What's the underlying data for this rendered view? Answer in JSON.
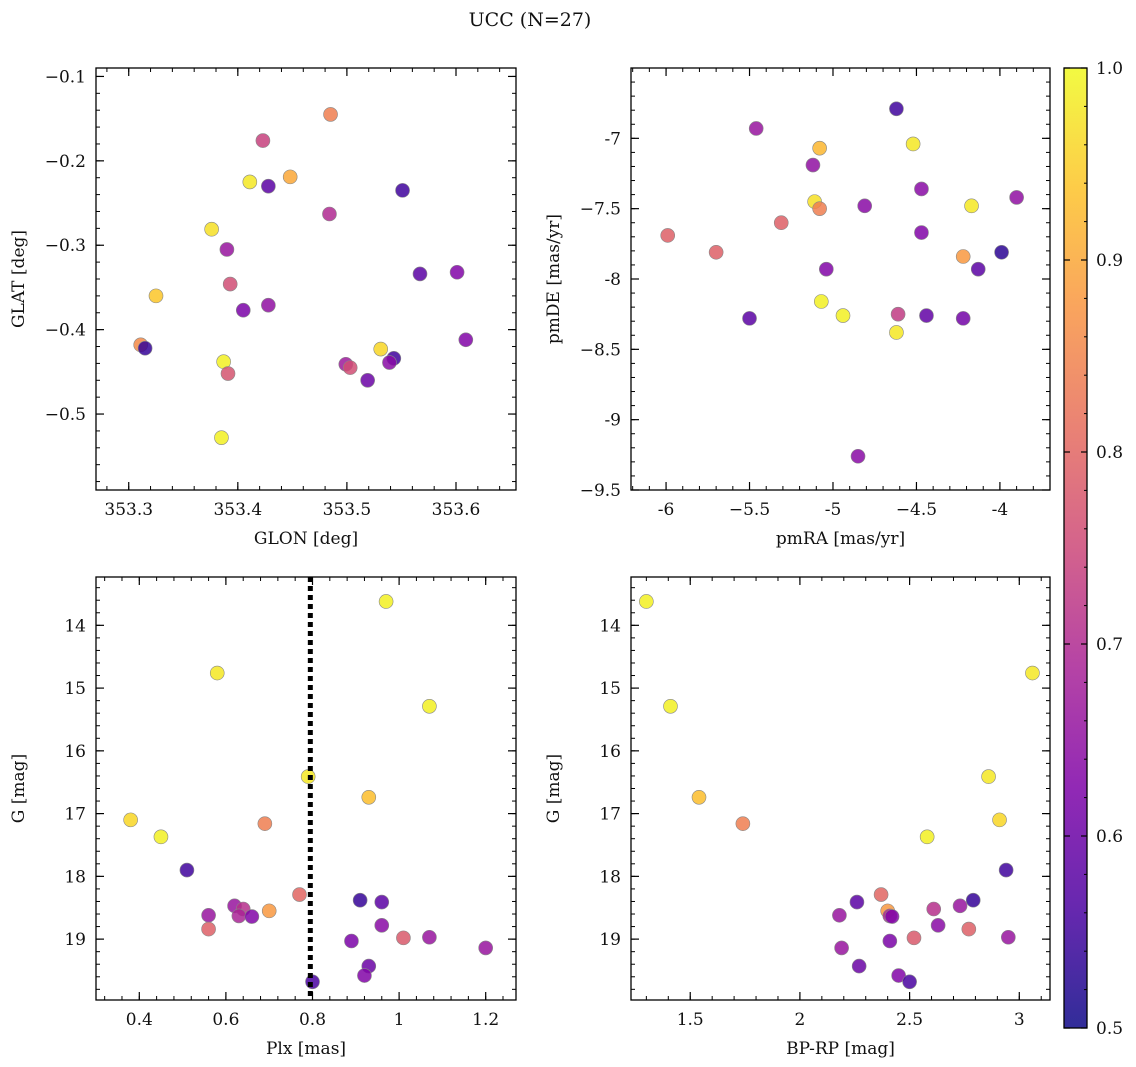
{
  "figure": {
    "title": "UCC (N=27)",
    "colorbar": {
      "min": 0.5,
      "max": 1.0,
      "ticks": [
        0.5,
        0.6,
        0.7,
        0.8,
        0.9,
        1.0
      ],
      "colormap": "plasma"
    },
    "marker": {
      "edge_color": "#888888"
    }
  },
  "chart_data": [
    {
      "type": "scatter",
      "id": "glon-glat",
      "xlabel": "GLON [deg]",
      "ylabel": "GLAT [deg]",
      "xlim": [
        353.27,
        353.655
      ],
      "ylim": [
        -0.59,
        -0.09
      ],
      "xticks": [
        353.3,
        353.4,
        353.5,
        353.6
      ],
      "yticks": [
        -0.5,
        -0.4,
        -0.3,
        -0.2,
        -0.1
      ],
      "points": [
        {
          "x": 353.485,
          "y": -0.145,
          "c": 0.84
        },
        {
          "x": 353.423,
          "y": -0.176,
          "c": 0.74
        },
        {
          "x": 353.448,
          "y": -0.219,
          "c": 0.9
        },
        {
          "x": 353.411,
          "y": -0.225,
          "c": 0.98
        },
        {
          "x": 353.428,
          "y": -0.23,
          "c": 0.58
        },
        {
          "x": 353.551,
          "y": -0.235,
          "c": 0.55
        },
        {
          "x": 353.484,
          "y": -0.263,
          "c": 0.7
        },
        {
          "x": 353.376,
          "y": -0.281,
          "c": 0.97
        },
        {
          "x": 353.39,
          "y": -0.305,
          "c": 0.66
        },
        {
          "x": 353.567,
          "y": -0.334,
          "c": 0.58
        },
        {
          "x": 353.601,
          "y": -0.332,
          "c": 0.63
        },
        {
          "x": 353.393,
          "y": -0.346,
          "c": 0.76
        },
        {
          "x": 353.325,
          "y": -0.36,
          "c": 0.94
        },
        {
          "x": 353.428,
          "y": -0.371,
          "c": 0.65
        },
        {
          "x": 353.405,
          "y": -0.377,
          "c": 0.62
        },
        {
          "x": 353.609,
          "y": -0.412,
          "c": 0.63
        },
        {
          "x": 353.311,
          "y": -0.418,
          "c": 0.86
        },
        {
          "x": 353.315,
          "y": -0.422,
          "c": 0.54
        },
        {
          "x": 353.531,
          "y": -0.423,
          "c": 0.96
        },
        {
          "x": 353.543,
          "y": -0.434,
          "c": 0.55
        },
        {
          "x": 353.387,
          "y": -0.438,
          "c": 0.99
        },
        {
          "x": 353.539,
          "y": -0.439,
          "c": 0.64
        },
        {
          "x": 353.499,
          "y": -0.441,
          "c": 0.67
        },
        {
          "x": 353.503,
          "y": -0.445,
          "c": 0.76
        },
        {
          "x": 353.391,
          "y": -0.452,
          "c": 0.77
        },
        {
          "x": 353.519,
          "y": -0.46,
          "c": 0.6
        },
        {
          "x": 353.385,
          "y": -0.528,
          "c": 0.99
        }
      ]
    },
    {
      "type": "scatter",
      "id": "pmra-pmde",
      "xlabel": "pmRA [mas/yr]",
      "ylabel": "pmDE [mas/yr]",
      "xlim": [
        -6.21,
        -3.7
      ],
      "ylim": [
        -9.5,
        -6.5
      ],
      "xticks": [
        -6.0,
        -5.5,
        -5.0,
        -4.5,
        -4.0
      ],
      "yticks": [
        -9.5,
        -9.0,
        -8.5,
        -8.0,
        -7.5,
        -7.0
      ],
      "points": [
        {
          "x": -4.62,
          "y": -6.79,
          "c": 0.55
        },
        {
          "x": -5.46,
          "y": -6.93,
          "c": 0.66
        },
        {
          "x": -4.52,
          "y": -7.04,
          "c": 0.98
        },
        {
          "x": -5.08,
          "y": -7.07,
          "c": 0.92
        },
        {
          "x": -5.12,
          "y": -7.19,
          "c": 0.65
        },
        {
          "x": -4.47,
          "y": -7.36,
          "c": 0.64
        },
        {
          "x": -3.9,
          "y": -7.42,
          "c": 0.65
        },
        {
          "x": -5.11,
          "y": -7.45,
          "c": 0.97
        },
        {
          "x": -4.81,
          "y": -7.48,
          "c": 0.64
        },
        {
          "x": -4.17,
          "y": -7.48,
          "c": 0.98
        },
        {
          "x": -5.08,
          "y": -7.5,
          "c": 0.84
        },
        {
          "x": -5.31,
          "y": -7.6,
          "c": 0.79
        },
        {
          "x": -4.47,
          "y": -7.67,
          "c": 0.63
        },
        {
          "x": -5.99,
          "y": -7.69,
          "c": 0.79
        },
        {
          "x": -5.7,
          "y": -7.81,
          "c": 0.79
        },
        {
          "x": -3.99,
          "y": -7.81,
          "c": 0.53
        },
        {
          "x": -4.22,
          "y": -7.84,
          "c": 0.88
        },
        {
          "x": -4.13,
          "y": -7.93,
          "c": 0.58
        },
        {
          "x": -5.04,
          "y": -7.93,
          "c": 0.63
        },
        {
          "x": -5.07,
          "y": -8.16,
          "c": 0.99
        },
        {
          "x": -4.61,
          "y": -8.25,
          "c": 0.73
        },
        {
          "x": -4.44,
          "y": -8.26,
          "c": 0.59
        },
        {
          "x": -4.94,
          "y": -8.26,
          "c": 0.99
        },
        {
          "x": -5.5,
          "y": -8.28,
          "c": 0.58
        },
        {
          "x": -4.22,
          "y": -8.28,
          "c": 0.61
        },
        {
          "x": -4.62,
          "y": -8.38,
          "c": 0.98
        },
        {
          "x": -4.85,
          "y": -9.26,
          "c": 0.64
        }
      ]
    },
    {
      "type": "scatter",
      "id": "plx-g",
      "xlabel": "Plx [mas]",
      "ylabel": "G [mag]",
      "xlim": [
        0.3,
        1.27
      ],
      "ylim": [
        19.97,
        13.23
      ],
      "xticks": [
        0.4,
        0.6,
        0.8,
        1.0,
        1.2
      ],
      "yticks": [
        14,
        15,
        16,
        17,
        18,
        19
      ],
      "vline": {
        "x": 0.795,
        "style": "dotted"
      },
      "points": [
        {
          "x": 0.97,
          "y": 13.62,
          "c": 0.99
        },
        {
          "x": 0.58,
          "y": 14.76,
          "c": 0.98
        },
        {
          "x": 1.07,
          "y": 15.29,
          "c": 0.99
        },
        {
          "x": 0.79,
          "y": 16.41,
          "c": 0.98
        },
        {
          "x": 0.93,
          "y": 16.74,
          "c": 0.93
        },
        {
          "x": 0.38,
          "y": 17.1,
          "c": 0.96
        },
        {
          "x": 0.69,
          "y": 17.16,
          "c": 0.84
        },
        {
          "x": 0.45,
          "y": 17.37,
          "c": 0.99
        },
        {
          "x": 0.51,
          "y": 17.9,
          "c": 0.55
        },
        {
          "x": 0.77,
          "y": 18.29,
          "c": 0.8
        },
        {
          "x": 0.91,
          "y": 18.38,
          "c": 0.54
        },
        {
          "x": 0.96,
          "y": 18.41,
          "c": 0.58
        },
        {
          "x": 0.62,
          "y": 18.47,
          "c": 0.66
        },
        {
          "x": 0.64,
          "y": 18.52,
          "c": 0.71
        },
        {
          "x": 0.7,
          "y": 18.55,
          "c": 0.88
        },
        {
          "x": 0.56,
          "y": 18.62,
          "c": 0.66
        },
        {
          "x": 0.63,
          "y": 18.63,
          "c": 0.69
        },
        {
          "x": 0.66,
          "y": 18.64,
          "c": 0.63
        },
        {
          "x": 0.96,
          "y": 18.78,
          "c": 0.64
        },
        {
          "x": 0.56,
          "y": 18.84,
          "c": 0.79
        },
        {
          "x": 1.07,
          "y": 18.97,
          "c": 0.66
        },
        {
          "x": 1.01,
          "y": 18.98,
          "c": 0.78
        },
        {
          "x": 0.89,
          "y": 19.03,
          "c": 0.62
        },
        {
          "x": 1.2,
          "y": 19.14,
          "c": 0.66
        },
        {
          "x": 0.93,
          "y": 19.43,
          "c": 0.6
        },
        {
          "x": 0.92,
          "y": 19.58,
          "c": 0.63
        },
        {
          "x": 0.8,
          "y": 19.68,
          "c": 0.56
        }
      ]
    },
    {
      "type": "scatter",
      "id": "bprp-g",
      "xlabel": "BP-RP [mag]",
      "ylabel": "G [mag]",
      "xlim": [
        1.23,
        3.14
      ],
      "ylim": [
        19.97,
        13.23
      ],
      "xticks": [
        1.5,
        2.0,
        2.5,
        3.0
      ],
      "yticks": [
        14,
        15,
        16,
        17,
        18,
        19
      ],
      "points": [
        {
          "x": 1.3,
          "y": 13.62,
          "c": 0.99
        },
        {
          "x": 3.06,
          "y": 14.76,
          "c": 0.98
        },
        {
          "x": 1.41,
          "y": 15.29,
          "c": 0.99
        },
        {
          "x": 2.86,
          "y": 16.41,
          "c": 0.98
        },
        {
          "x": 1.54,
          "y": 16.74,
          "c": 0.93
        },
        {
          "x": 2.91,
          "y": 17.1,
          "c": 0.96
        },
        {
          "x": 1.74,
          "y": 17.16,
          "c": 0.84
        },
        {
          "x": 2.58,
          "y": 17.37,
          "c": 0.99
        },
        {
          "x": 2.94,
          "y": 17.9,
          "c": 0.55
        },
        {
          "x": 2.37,
          "y": 18.29,
          "c": 0.8
        },
        {
          "x": 2.79,
          "y": 18.38,
          "c": 0.54
        },
        {
          "x": 2.26,
          "y": 18.41,
          "c": 0.58
        },
        {
          "x": 2.73,
          "y": 18.47,
          "c": 0.66
        },
        {
          "x": 2.61,
          "y": 18.52,
          "c": 0.71
        },
        {
          "x": 2.4,
          "y": 18.55,
          "c": 0.88
        },
        {
          "x": 2.18,
          "y": 18.62,
          "c": 0.66
        },
        {
          "x": 2.41,
          "y": 18.63,
          "c": 0.69
        },
        {
          "x": 2.42,
          "y": 18.64,
          "c": 0.63
        },
        {
          "x": 2.63,
          "y": 18.78,
          "c": 0.64
        },
        {
          "x": 2.77,
          "y": 18.84,
          "c": 0.79
        },
        {
          "x": 2.95,
          "y": 18.97,
          "c": 0.66
        },
        {
          "x": 2.52,
          "y": 18.98,
          "c": 0.78
        },
        {
          "x": 2.41,
          "y": 19.03,
          "c": 0.62
        },
        {
          "x": 2.19,
          "y": 19.14,
          "c": 0.66
        },
        {
          "x": 2.27,
          "y": 19.43,
          "c": 0.6
        },
        {
          "x": 2.45,
          "y": 19.58,
          "c": 0.63
        },
        {
          "x": 2.5,
          "y": 19.68,
          "c": 0.56
        }
      ]
    }
  ]
}
